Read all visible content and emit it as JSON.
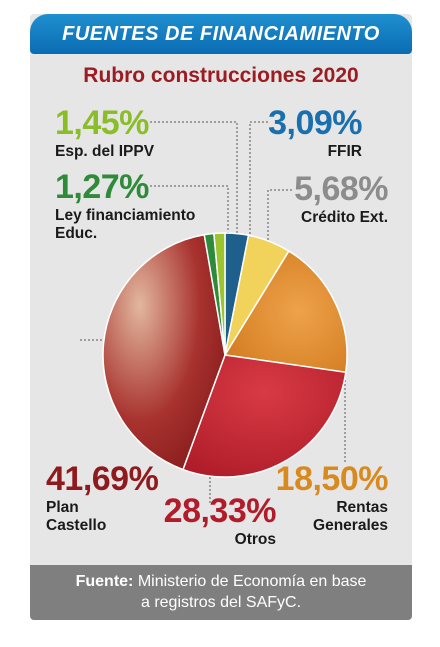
{
  "header": {
    "banner_title": "FUENTES DE FINANCIAMIENTO",
    "subtitle": "Rubro construcciones 2020"
  },
  "chart_data": {
    "type": "pie",
    "title": "Rubro construcciones 2020",
    "slices": [
      {
        "label": "FFIR",
        "pct_label": "3,09%",
        "value": 3.09,
        "color": "#1f5f8b"
      },
      {
        "label": "Crédito Ext.",
        "pct_label": "5,68%",
        "value": 5.68,
        "color": "#f1d25a"
      },
      {
        "label": "Rentas Generales",
        "pct_label": "18,50%",
        "value": 18.5,
        "color": "#e08a22"
      },
      {
        "label": "Otros",
        "pct_label": "28,33%",
        "value": 28.33,
        "color": "#c2202e"
      },
      {
        "label": "Plan Castello",
        "pct_label": "41,69%",
        "value": 41.69,
        "color": "#8f1a1e"
      },
      {
        "label": "Ley financiamiento Educ.",
        "pct_label": "1,27%",
        "value": 1.27,
        "color": "#2f8a3a"
      },
      {
        "label": "Esp. del IPPV",
        "pct_label": "1,45%",
        "value": 1.45,
        "color": "#9cc42e"
      }
    ]
  },
  "labels": {
    "ippv": {
      "pct": "1,45%",
      "name": "Esp. del IPPV"
    },
    "ffir": {
      "pct": "3,09%",
      "name": "FFIR"
    },
    "ley": {
      "pct": "1,27%",
      "name_line1": "Ley financiamiento",
      "name_line2": "Educ."
    },
    "credito": {
      "pct": "5,68%",
      "name": "Crédito Ext."
    },
    "plan": {
      "pct": "41,69%",
      "name_line1": "Plan",
      "name_line2": "Castello"
    },
    "otros": {
      "pct": "28,33%",
      "name": "Otros"
    },
    "rentas": {
      "pct": "18,50%",
      "name_line1": "Rentas",
      "name_line2": "Generales"
    }
  },
  "footer": {
    "source_label": "Fuente:",
    "source_text_line1": "Ministerio de Economía en base",
    "source_text_line2": "a registros del SAFyC."
  }
}
